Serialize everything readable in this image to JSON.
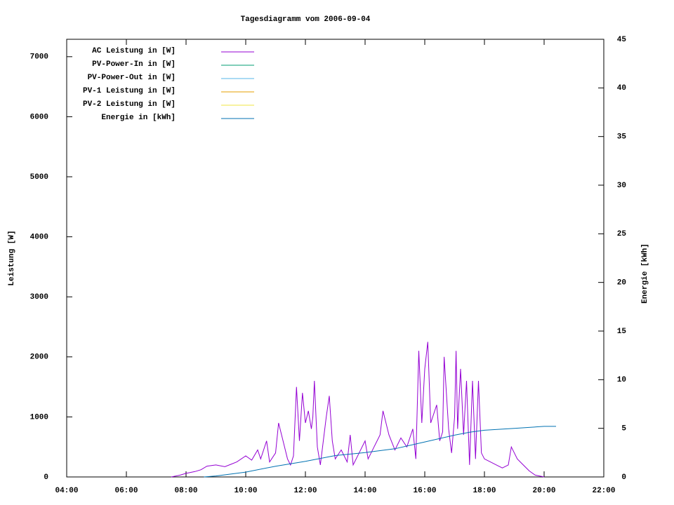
{
  "chart_data": {
    "type": "line",
    "title": "Tagesdiagramm vom 2006-09-04",
    "y_label": "Leistung [W]",
    "y2_label": "Energie [kWh]",
    "xlim": [
      4,
      22
    ],
    "xticks": [
      {
        "value": 4,
        "label": "04:00"
      },
      {
        "value": 6,
        "label": "06:00"
      },
      {
        "value": 8,
        "label": "08:00"
      },
      {
        "value": 10,
        "label": "10:00"
      },
      {
        "value": 12,
        "label": "12:00"
      },
      {
        "value": 14,
        "label": "14:00"
      },
      {
        "value": 16,
        "label": "16:00"
      },
      {
        "value": 18,
        "label": "18:00"
      },
      {
        "value": 20,
        "label": "20:00"
      },
      {
        "value": 22,
        "label": "22:00"
      }
    ],
    "ylim": [
      0,
      7290
    ],
    "yticks": [
      0,
      1000,
      2000,
      3000,
      4000,
      5000,
      6000,
      7000
    ],
    "y2lim": [
      0,
      45
    ],
    "y2ticks": [
      0,
      5,
      10,
      15,
      20,
      25,
      30,
      35,
      40,
      45
    ],
    "legend": "top-left",
    "series": [
      {
        "name": "AC Leistung in [W]",
        "color": "#9400d3",
        "x": [
          7.5,
          7.8,
          8.0,
          8.3,
          8.5,
          8.7,
          9.0,
          9.3,
          9.5,
          9.7,
          10.0,
          10.2,
          10.4,
          10.5,
          10.7,
          10.8,
          11.0,
          11.1,
          11.3,
          11.4,
          11.5,
          11.6,
          11.7,
          11.8,
          11.9,
          12.0,
          12.1,
          12.2,
          12.25,
          12.3,
          12.4,
          12.5,
          12.6,
          12.7,
          12.8,
          12.9,
          13.0,
          13.2,
          13.4,
          13.5,
          13.6,
          13.8,
          14.0,
          14.1,
          14.3,
          14.5,
          14.6,
          14.8,
          15.0,
          15.2,
          15.4,
          15.6,
          15.7,
          15.8,
          15.9,
          16.0,
          16.1,
          16.2,
          16.4,
          16.5,
          16.6,
          16.65,
          16.8,
          16.9,
          17.0,
          17.05,
          17.1,
          17.2,
          17.3,
          17.4,
          17.5,
          17.6,
          17.7,
          17.8,
          17.9,
          18.0,
          18.2,
          18.4,
          18.6,
          18.8,
          18.9,
          19.1,
          19.3,
          19.5,
          19.7,
          19.9,
          20.0
        ],
        "values": [
          0,
          30,
          60,
          90,
          120,
          180,
          200,
          170,
          210,
          250,
          350,
          280,
          450,
          300,
          600,
          250,
          400,
          900,
          500,
          300,
          200,
          350,
          1500,
          600,
          1400,
          900,
          1100,
          800,
          1000,
          1600,
          500,
          200,
          600,
          1000,
          1350,
          600,
          300,
          450,
          250,
          700,
          200,
          400,
          600,
          300,
          500,
          700,
          1100,
          700,
          450,
          650,
          500,
          800,
          300,
          2100,
          900,
          1800,
          2250,
          900,
          1200,
          600,
          750,
          2000,
          800,
          400,
          1000,
          2100,
          800,
          1800,
          700,
          1600,
          200,
          1600,
          300,
          1600,
          400,
          300,
          250,
          200,
          150,
          200,
          500,
          300,
          200,
          100,
          30,
          10,
          0
        ]
      },
      {
        "name": "PV-Power-In in [W]",
        "color": "#009e73",
        "x": [],
        "values": []
      },
      {
        "name": "PV-Power-Out in [W]",
        "color": "#56b4e9",
        "x": [],
        "values": []
      },
      {
        "name": "PV-1 Leistung in [W]",
        "color": "#e69f00",
        "x": [],
        "values": []
      },
      {
        "name": "PV-2 Leistung in [W]",
        "color": "#f0e442",
        "x": [],
        "values": []
      },
      {
        "name": "Energie in [kWh]",
        "color": "#0072b2",
        "axis": "y2",
        "x": [
          8.6,
          9,
          10,
          11,
          12,
          13,
          14,
          15,
          16,
          17,
          17.5,
          18,
          19,
          20,
          20.4
        ],
        "values": [
          0,
          0.1,
          0.5,
          1.1,
          1.6,
          2.2,
          2.5,
          2.9,
          3.6,
          4.3,
          4.6,
          4.8,
          5.0,
          5.2,
          5.2
        ]
      }
    ]
  }
}
